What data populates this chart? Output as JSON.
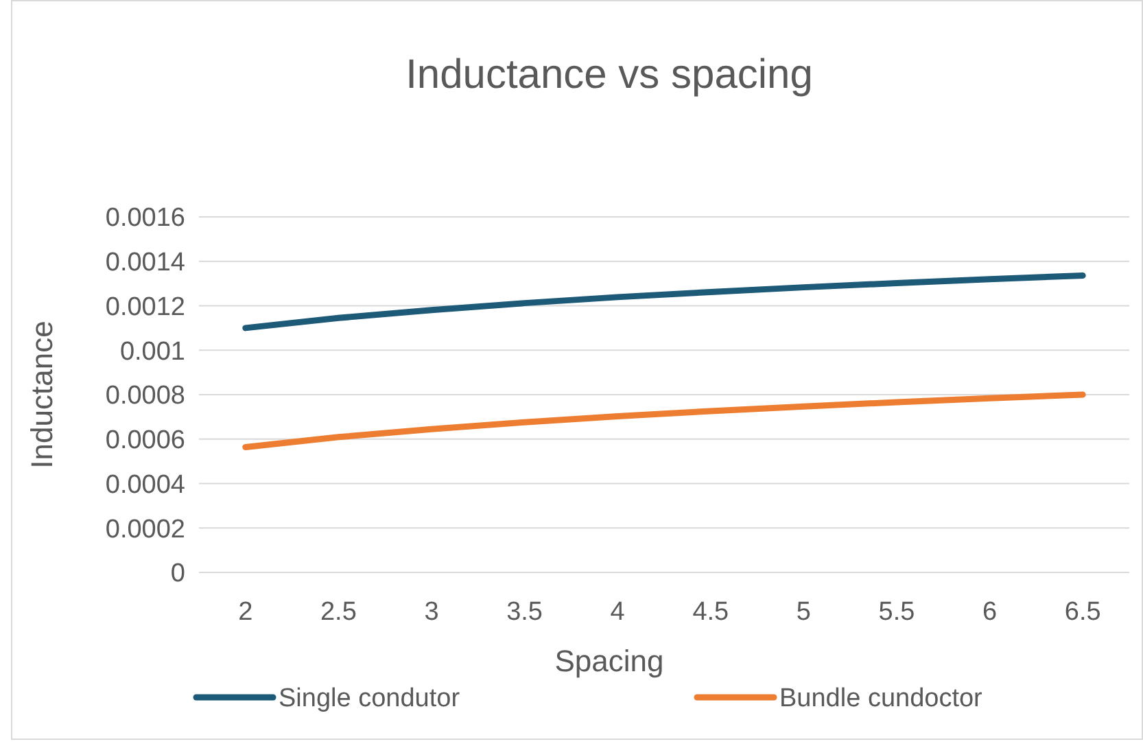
{
  "chart_data": {
    "type": "line",
    "title": "Inductance vs spacing",
    "xlabel": "Spacing",
    "ylabel": "Inductance",
    "categories": [
      "2",
      "2.5",
      "3",
      "3.5",
      "4",
      "4.5",
      "5",
      "5.5",
      "6",
      "6.5"
    ],
    "series": [
      {
        "name": "Single condutor",
        "color": "#1d5a78",
        "values": [
          0.0011,
          0.001145,
          0.001181,
          0.001212,
          0.001239,
          0.001262,
          0.001283,
          0.001302,
          0.00132,
          0.001336
        ]
      },
      {
        "name": "Bundle cundoctor",
        "color": "#ed7d31",
        "values": [
          0.000564,
          0.000609,
          0.000645,
          0.000676,
          0.000703,
          0.000726,
          0.000747,
          0.000766,
          0.000784,
          0.0008
        ]
      }
    ],
    "ylim": [
      0,
      0.0016
    ],
    "yticks": [
      0,
      0.0002,
      0.0004,
      0.0006,
      0.0008,
      0.001,
      0.0012,
      0.0014,
      0.0016
    ],
    "grid": "y",
    "legend": "bottom",
    "marker": "none",
    "line_style": "solid"
  }
}
